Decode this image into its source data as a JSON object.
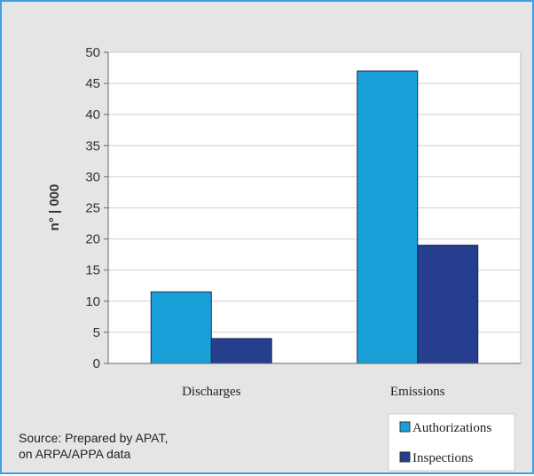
{
  "chart_data": {
    "type": "bar",
    "categories": [
      "Discharges",
      "Emissions"
    ],
    "series": [
      {
        "name": "Authorizations",
        "values": [
          11.5,
          47
        ],
        "color": "#1aa0d8"
      },
      {
        "name": "Inspections",
        "values": [
          4,
          19
        ],
        "color": "#253e8e"
      }
    ],
    "title": "",
    "xlabel": "",
    "ylabel": "n° | 000",
    "ylim": [
      0,
      50
    ],
    "yticks": [
      0,
      5,
      10,
      15,
      20,
      25,
      30,
      35,
      40,
      45,
      50
    ],
    "grid": true,
    "legend_position": "bottom-right"
  },
  "source": {
    "line1": "Source: Prepared by APAT,",
    "line2": "on ARPA/APPA data"
  },
  "colors": {
    "frame_border": "#3f9fe2",
    "background": "#e5e5e5",
    "plot_area": "#ffffff",
    "gridline": "#d0d0d0"
  }
}
